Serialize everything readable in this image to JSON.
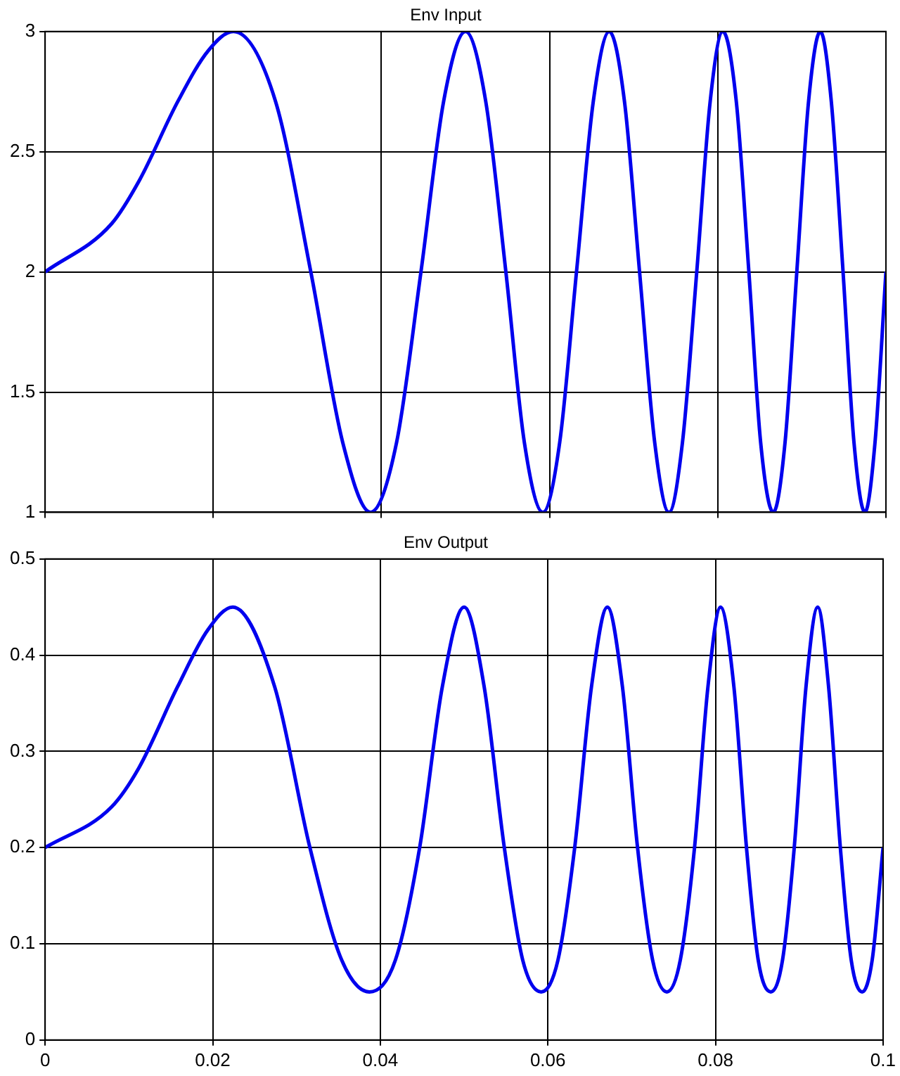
{
  "chart_data": [
    {
      "type": "line",
      "title": "Env Input",
      "x": [
        0,
        0.0079,
        0.0112,
        0.0158,
        0.0194,
        0.0224,
        0.0274,
        0.0316,
        0.0354,
        0.0387,
        0.0418,
        0.0447,
        0.0474,
        0.05,
        0.0524,
        0.0548,
        0.057,
        0.0592,
        0.0612,
        0.0632,
        0.0652,
        0.0671,
        0.0689,
        0.0707,
        0.0725,
        0.0742,
        0.0758,
        0.0775,
        0.0791,
        0.0806,
        0.0822,
        0.0837,
        0.0851,
        0.0866,
        0.088,
        0.0894,
        0.0908,
        0.0922,
        0.0935,
        0.0949,
        0.0962,
        0.0975,
        0.0987,
        0.1
      ],
      "series": [
        {
          "color": "#0000ee",
          "values": [
            2,
            2.2,
            2.38,
            2.71,
            2.92,
            3,
            2.71,
            2,
            1.29,
            1,
            1.29,
            2,
            2.71,
            3,
            2.71,
            2,
            1.29,
            1,
            1.29,
            2,
            2.71,
            3,
            2.71,
            2,
            1.29,
            1,
            1.29,
            2,
            2.71,
            3,
            2.71,
            2,
            1.29,
            1,
            1.29,
            2,
            2.71,
            3,
            2.71,
            2,
            1.29,
            1,
            1.29,
            2
          ]
        }
      ],
      "xlim": [
        0,
        0.1
      ],
      "xticks": [
        0,
        0.02,
        0.04,
        0.06,
        0.08,
        0.1
      ],
      "ylim": [
        1,
        3
      ],
      "yticks": [
        1,
        1.5,
        2,
        2.5,
        3
      ],
      "grid": true,
      "legend": false,
      "tick_labels": "y",
      "marker": "none",
      "line_style": "solid"
    },
    {
      "type": "line",
      "title": "Env Output",
      "x": [
        0,
        0.0079,
        0.0112,
        0.0158,
        0.0194,
        0.0224,
        0.0274,
        0.0316,
        0.0354,
        0.0387,
        0.0418,
        0.0447,
        0.0474,
        0.05,
        0.0524,
        0.0548,
        0.057,
        0.0592,
        0.0612,
        0.0632,
        0.0652,
        0.0671,
        0.0689,
        0.0707,
        0.0725,
        0.0742,
        0.0758,
        0.0775,
        0.0791,
        0.0806,
        0.0822,
        0.0837,
        0.0851,
        0.0866,
        0.088,
        0.0894,
        0.0908,
        0.0922,
        0.0935,
        0.0949,
        0.0962,
        0.0975,
        0.0987,
        0.1
      ],
      "series": [
        {
          "color": "#0000ee",
          "values": [
            0.2,
            0.242,
            0.283,
            0.367,
            0.426,
            0.45,
            0.367,
            0.2,
            0.083,
            0.05,
            0.083,
            0.2,
            0.367,
            0.45,
            0.367,
            0.2,
            0.083,
            0.05,
            0.083,
            0.2,
            0.367,
            0.45,
            0.367,
            0.2,
            0.083,
            0.05,
            0.083,
            0.2,
            0.367,
            0.45,
            0.367,
            0.2,
            0.083,
            0.05,
            0.083,
            0.2,
            0.367,
            0.45,
            0.367,
            0.2,
            0.083,
            0.05,
            0.083,
            0.2
          ]
        }
      ],
      "xlim": [
        0,
        0.1
      ],
      "xticks": [
        0,
        0.02,
        0.04,
        0.06,
        0.08,
        0.1
      ],
      "ylim": [
        0,
        0.5
      ],
      "yticks": [
        0,
        0.1,
        0.2,
        0.3,
        0.4,
        0.5
      ],
      "grid": true,
      "legend": false,
      "marker": "none",
      "line_style": "solid"
    }
  ]
}
